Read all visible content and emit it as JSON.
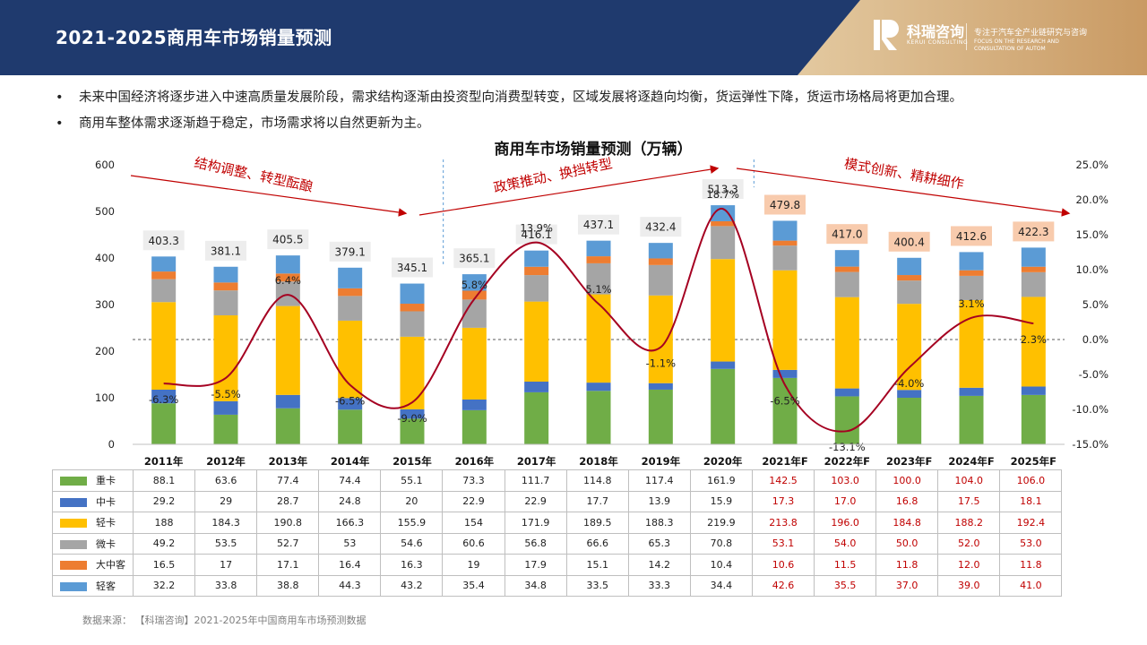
{
  "header": {
    "title": "2021-2025商用车市场销量预测",
    "brand_name": "科瑞咨询",
    "brand_sub": "KERUI CONSULTING",
    "slogan_cn": "专注于汽车全产业链研究与咨询",
    "slogan_en": "FOCUS ON THE RESEARCH AND CONSULTATION OF AUTOM"
  },
  "bullets": [
    "未来中国经济将逐步进入中速高质量发展阶段，需求结构逐渐由投资型向消费型转变，区域发展将逐趋向均衡，货运弹性下降，货运市场格局将更加合理。",
    "商用车整体需求逐渐趋于稳定，市场需求将以自然更新为主。"
  ],
  "source_note": "数据来源：  【科瑞咨询】2021-2025年中国商用车市场预测数据",
  "chart_data": {
    "type": "bar",
    "title": "商用车市场销量预测（万辆）",
    "stacked": true,
    "categories": [
      "2011年",
      "2012年",
      "2013年",
      "2014年",
      "2015年",
      "2016年",
      "2017年",
      "2018年",
      "2019年",
      "2020年",
      "2021年F",
      "2022年F",
      "2023年F",
      "2024年F",
      "2025年F"
    ],
    "forecast_from_index": 10,
    "ylim": [
      0,
      600
    ],
    "y_ticks": [
      "0",
      "100",
      "200",
      "300",
      "400",
      "500",
      "600"
    ],
    "y2lim": [
      -15,
      25
    ],
    "y2_ticks": [
      "-15.0%",
      "-10.0%",
      "-5.0%",
      "0.0%",
      "5.0%",
      "10.0%",
      "15.0%",
      "20.0%",
      "25.0%"
    ],
    "series": [
      {
        "name": "重卡",
        "color": "#70ad47",
        "values": [
          88.1,
          63.6,
          77.4,
          74.4,
          55.1,
          73.3,
          111.7,
          114.8,
          117.4,
          161.9,
          142.5,
          103.0,
          100.0,
          104.0,
          106.0
        ],
        "labels": [
          "88.1",
          "63.6",
          "77.4",
          "74.4",
          "55.1",
          "73.3",
          "111.7",
          "114.8",
          "117.4",
          "161.9",
          "142.5",
          "103.0",
          "100.0",
          "104.0",
          "106.0"
        ]
      },
      {
        "name": "中卡",
        "color": "#4472c4",
        "values": [
          29.2,
          29,
          28.7,
          24.8,
          20,
          22.9,
          22.9,
          17.7,
          13.9,
          15.9,
          17.3,
          17.0,
          16.8,
          17.5,
          18.1
        ],
        "labels": [
          "29.2",
          "29",
          "28.7",
          "24.8",
          "20",
          "22.9",
          "22.9",
          "17.7",
          "13.9",
          "15.9",
          "17.3",
          "17.0",
          "16.8",
          "17.5",
          "18.1"
        ]
      },
      {
        "name": "轻卡",
        "color": "#ffc000",
        "values": [
          188,
          184.3,
          190.8,
          166.3,
          155.9,
          154,
          171.9,
          189.5,
          188.3,
          219.9,
          213.8,
          196.0,
          184.8,
          188.2,
          192.4
        ],
        "labels": [
          "188",
          "184.3",
          "190.8",
          "166.3",
          "155.9",
          "154",
          "171.9",
          "189.5",
          "188.3",
          "219.9",
          "213.8",
          "196.0",
          "184.8",
          "188.2",
          "192.4"
        ]
      },
      {
        "name": "微卡",
        "color": "#a5a5a5",
        "values": [
          49.2,
          53.5,
          52.7,
          53,
          54.6,
          60.6,
          56.8,
          66.6,
          65.3,
          70.8,
          53.1,
          54.0,
          50.0,
          52.0,
          53.0
        ],
        "labels": [
          "49.2",
          "53.5",
          "52.7",
          "53",
          "54.6",
          "60.6",
          "56.8",
          "66.6",
          "65.3",
          "70.8",
          "53.1",
          "54.0",
          "50.0",
          "52.0",
          "53.0"
        ]
      },
      {
        "name": "大中客",
        "color": "#ed7d31",
        "values": [
          16.5,
          17,
          17.1,
          16.4,
          16.3,
          19,
          17.9,
          15.1,
          14.2,
          10.4,
          10.6,
          11.5,
          11.8,
          12.0,
          11.8
        ],
        "labels": [
          "16.5",
          "17",
          "17.1",
          "16.4",
          "16.3",
          "19",
          "17.9",
          "15.1",
          "14.2",
          "10.4",
          "10.6",
          "11.5",
          "11.8",
          "12.0",
          "11.8"
        ]
      },
      {
        "name": "轻客",
        "color": "#5b9bd5",
        "values": [
          32.2,
          33.8,
          38.8,
          44.3,
          43.2,
          35.4,
          34.8,
          33.5,
          33.3,
          34.4,
          42.6,
          35.5,
          37.0,
          39.0,
          41.0
        ],
        "labels": [
          "32.2",
          "33.8",
          "38.8",
          "44.3",
          "43.2",
          "35.4",
          "34.8",
          "33.5",
          "33.3",
          "34.4",
          "42.6",
          "35.5",
          "37.0",
          "39.0",
          "41.0"
        ]
      }
    ],
    "totals": [
      "403.3",
      "381.1",
      "405.5",
      "379.1",
      "345.1",
      "365.1",
      "416.1",
      "437.1",
      "432.4",
      "513.3",
      "479.8",
      "417.0",
      "400.4",
      "412.6",
      "422.3"
    ],
    "total_values": [
      403.3,
      381.1,
      405.5,
      379.1,
      345.1,
      365.1,
      416.1,
      437.1,
      432.4,
      513.3,
      479.8,
      417.0,
      400.4,
      412.6,
      422.3
    ],
    "growth": {
      "values": [
        -6.3,
        -5.5,
        6.4,
        -6.5,
        -9.0,
        5.8,
        13.9,
        5.1,
        -1.1,
        18.7,
        -6.5,
        -13.1,
        -4.0,
        3.1,
        2.3
      ],
      "labels": [
        "-6.3%",
        "-5.5%",
        "6.4%",
        "-6.5%",
        "-9.0%",
        "5.8%",
        "13.9%",
        "5.1%",
        "-1.1%",
        "18.7%",
        "-6.5%",
        "-13.1%",
        "-4.0%",
        "3.1%",
        "2.3%"
      ],
      "line_color": "#a50021"
    },
    "phase_annotations": [
      "结构调整、转型酝酿",
      "政策推动、换挡转型",
      "模式创新、精耕细作"
    ],
    "colors": {
      "forecast_total_bg": "#f8cbad",
      "total_bg": "#ededed",
      "annotation": "#c00000"
    }
  }
}
